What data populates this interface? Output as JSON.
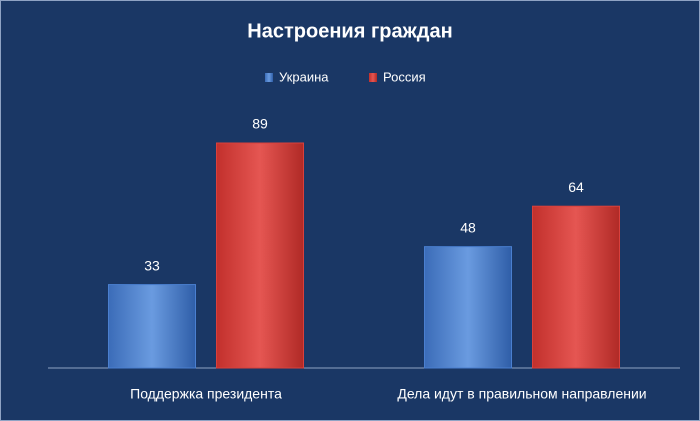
{
  "chart_data": {
    "type": "bar",
    "title": "Настроения граждан",
    "categories": [
      "Поддержка президента",
      "Дела идут в правильном направлении"
    ],
    "series": [
      {
        "name": "Украина",
        "color": "#4a7fd0",
        "values": [
          33,
          48
        ]
      },
      {
        "name": "Россия",
        "color": "#d9403c",
        "values": [
          89,
          64
        ]
      }
    ]
  }
}
